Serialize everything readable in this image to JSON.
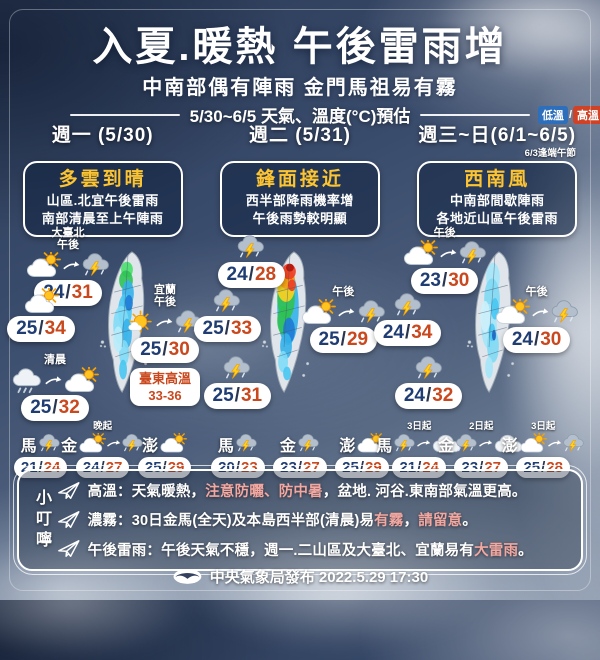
{
  "header": {
    "title": "入夏.暖熱  午後雷雨增",
    "subtitle": "中南部偶有陣雨 金門馬祖易有霧",
    "period_label": "5/30~6/5 天氣、溫度(°C)預估",
    "temp_legend": {
      "low_label": "低溫",
      "separator": "/",
      "high_label": "高溫"
    }
  },
  "columns": [
    {
      "day_label": "週一 (5/30)",
      "sub_label": "",
      "summary": {
        "title": "多雲到晴",
        "lines": [
          "山區.北宜午後雷雨",
          "南部清晨至上午陣雨"
        ]
      },
      "spots": [
        {
          "labels": [
            "大臺北",
            "午後"
          ],
          "icons": [
            "cloud-sun-icon",
            "arrow-icon",
            "thunderstorm-icon"
          ],
          "low": "24",
          "high": "31"
        },
        {
          "labels": [],
          "icons": [
            "cloud-sun-icon"
          ],
          "low": "25",
          "high": "34"
        },
        {
          "labels": [
            "宜蘭",
            "午後"
          ],
          "icons": [
            "sun-icon",
            "arrow-icon",
            "thunderstorm-icon"
          ],
          "low": "25",
          "high": "30",
          "extra": [
            "臺東高溫",
            "33-36"
          ]
        },
        {
          "labels": [
            "清晨"
          ],
          "icons": [
            "rain-cloud-icon",
            "arrow-icon",
            "cloud-sun-icon"
          ],
          "low": "25",
          "high": "32"
        }
      ],
      "islands": [
        {
          "name": "馬",
          "label": "",
          "icons": [
            "thunderstorm-icon"
          ],
          "low": "21",
          "high": "24"
        },
        {
          "name": "金",
          "label": "晚起",
          "icons": [
            "cloud-sun-icon",
            "arrow-icon",
            "thunderstorm-icon"
          ],
          "low": "24",
          "high": "27"
        },
        {
          "name": "澎",
          "label": "",
          "icons": [
            "cloud-sun-icon"
          ],
          "low": "25",
          "high": "29"
        }
      ]
    },
    {
      "day_label": "週二 (5/31)",
      "sub_label": "",
      "summary": {
        "title": "鋒面接近",
        "lines": [
          "西半部降雨機率增",
          "午後雨勢較明顯"
        ]
      },
      "spots": [
        {
          "labels": [],
          "icons": [
            "thunderstorm-icon"
          ],
          "low": "24",
          "high": "28"
        },
        {
          "labels": [],
          "icons": [
            "thunderstorm-icon"
          ],
          "low": "25",
          "high": "33"
        },
        {
          "labels": [
            "午後"
          ],
          "icons": [
            "cloud-sun-icon",
            "arrow-icon",
            "thunderstorm-icon"
          ],
          "low": "25",
          "high": "29"
        },
        {
          "labels": [],
          "icons": [
            "thunderstorm-icon"
          ],
          "low": "25",
          "high": "31"
        }
      ],
      "islands": [
        {
          "name": "馬",
          "label": "",
          "icons": [
            "thunderstorm-icon"
          ],
          "low": "20",
          "high": "23"
        },
        {
          "name": "金",
          "label": "",
          "icons": [
            "thunderstorm-icon"
          ],
          "low": "23",
          "high": "27"
        },
        {
          "name": "澎",
          "label": "",
          "icons": [
            "cloud-sun-icon"
          ],
          "low": "25",
          "high": "29"
        }
      ]
    },
    {
      "day_label": "週三~日(6/1~6/5)",
      "sub_label": "6/3逢端午節",
      "summary": {
        "title": "西南風",
        "lines": [
          "中南部間歇陣雨",
          "各地近山區午後雷雨"
        ]
      },
      "spots": [
        {
          "labels": [
            "午後"
          ],
          "icons": [
            "cloud-sun-icon",
            "arrow-icon",
            "thunderstorm-icon"
          ],
          "low": "23",
          "high": "30"
        },
        {
          "labels": [],
          "icons": [
            "thunderstorm-icon"
          ],
          "low": "24",
          "high": "34"
        },
        {
          "labels": [
            "午後"
          ],
          "icons": [
            "cloud-sun-icon",
            "arrow-icon",
            "thunderstorm-icon"
          ],
          "low": "24",
          "high": "30"
        },
        {
          "labels": [],
          "icons": [
            "thunderstorm-icon"
          ],
          "low": "24",
          "high": "32"
        }
      ],
      "islands": [
        {
          "name": "馬",
          "label": "3日起",
          "icons": [
            "thunderstorm-icon",
            "arrow-icon",
            "cloud-icon"
          ],
          "low": "21",
          "high": "24"
        },
        {
          "name": "金",
          "label": "2日起",
          "icons": [
            "thunderstorm-icon",
            "arrow-icon",
            "cloud-icon"
          ],
          "low": "23",
          "high": "27"
        },
        {
          "name": "澎",
          "label": "3日起",
          "icons": [
            "cloud-sun-icon",
            "arrow-icon",
            "thunderstorm-icon"
          ],
          "low": "25",
          "high": "28"
        }
      ]
    }
  ],
  "tips": {
    "heading": "小叮嚀",
    "items": [
      {
        "segments": [
          {
            "text": "高溫：天氣暖熱，",
            "highlight": false
          },
          {
            "text": "注意防曬、防中暑",
            "highlight": true
          },
          {
            "text": "，盆地. 河谷.東南部氣溫更高。",
            "highlight": false
          }
        ]
      },
      {
        "segments": [
          {
            "text": "濃霧：30日金馬(全天)及本島西半部(清晨)易",
            "highlight": false
          },
          {
            "text": "有霧",
            "highlight": true
          },
          {
            "text": "，",
            "highlight": false
          },
          {
            "text": "請留意",
            "highlight": true
          },
          {
            "text": "。",
            "highlight": false
          }
        ]
      },
      {
        "segments": [
          {
            "text": "午後雷雨：午後天氣不穩，週一.二山區及大臺北、宜蘭易有",
            "highlight": false
          },
          {
            "text": "大雷雨",
            "highlight": true
          },
          {
            "text": "。",
            "highlight": false
          }
        ]
      }
    ]
  },
  "footer": {
    "text": "中央氣象局發布 2022.5.29 17:30"
  },
  "colors": {
    "summary_title": "#fdc431",
    "temp_low": "#1f3d72",
    "temp_high": "#c9481d",
    "tip_highlight": "#f2a7a0",
    "legend_low_bg": "#2e6fbc",
    "legend_high_bg": "#cf4226"
  }
}
